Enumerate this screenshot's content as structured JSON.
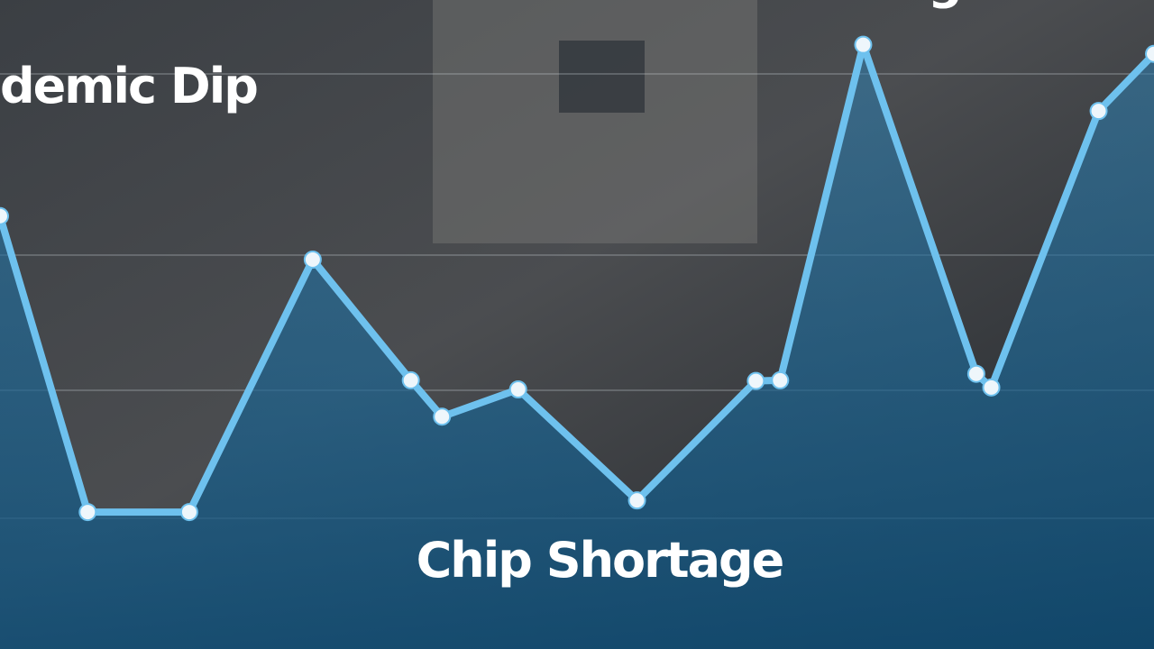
{
  "chart_data": {
    "type": "line",
    "annotations": [
      "demic Dip",
      "EV Surge",
      "Chip Shortage"
    ],
    "x": [
      0,
      7.6,
      16.4,
      27.1,
      35.6,
      38.3,
      44.9,
      55.2,
      65.5,
      67.6,
      74.8,
      84.6,
      85.9,
      95.2,
      100
    ],
    "series": [
      {
        "color": "#6ec1ee",
        "values": [
          66.7,
          21.1,
          21.1,
          60,
          41.4,
          35.8,
          40,
          22.9,
          41.3,
          41.4,
          93.1,
          42.4,
          40.3,
          82.9,
          91.7
        ]
      }
    ],
    "xlim": [
      0,
      100
    ],
    "ylim": [
      0,
      100
    ]
  }
}
